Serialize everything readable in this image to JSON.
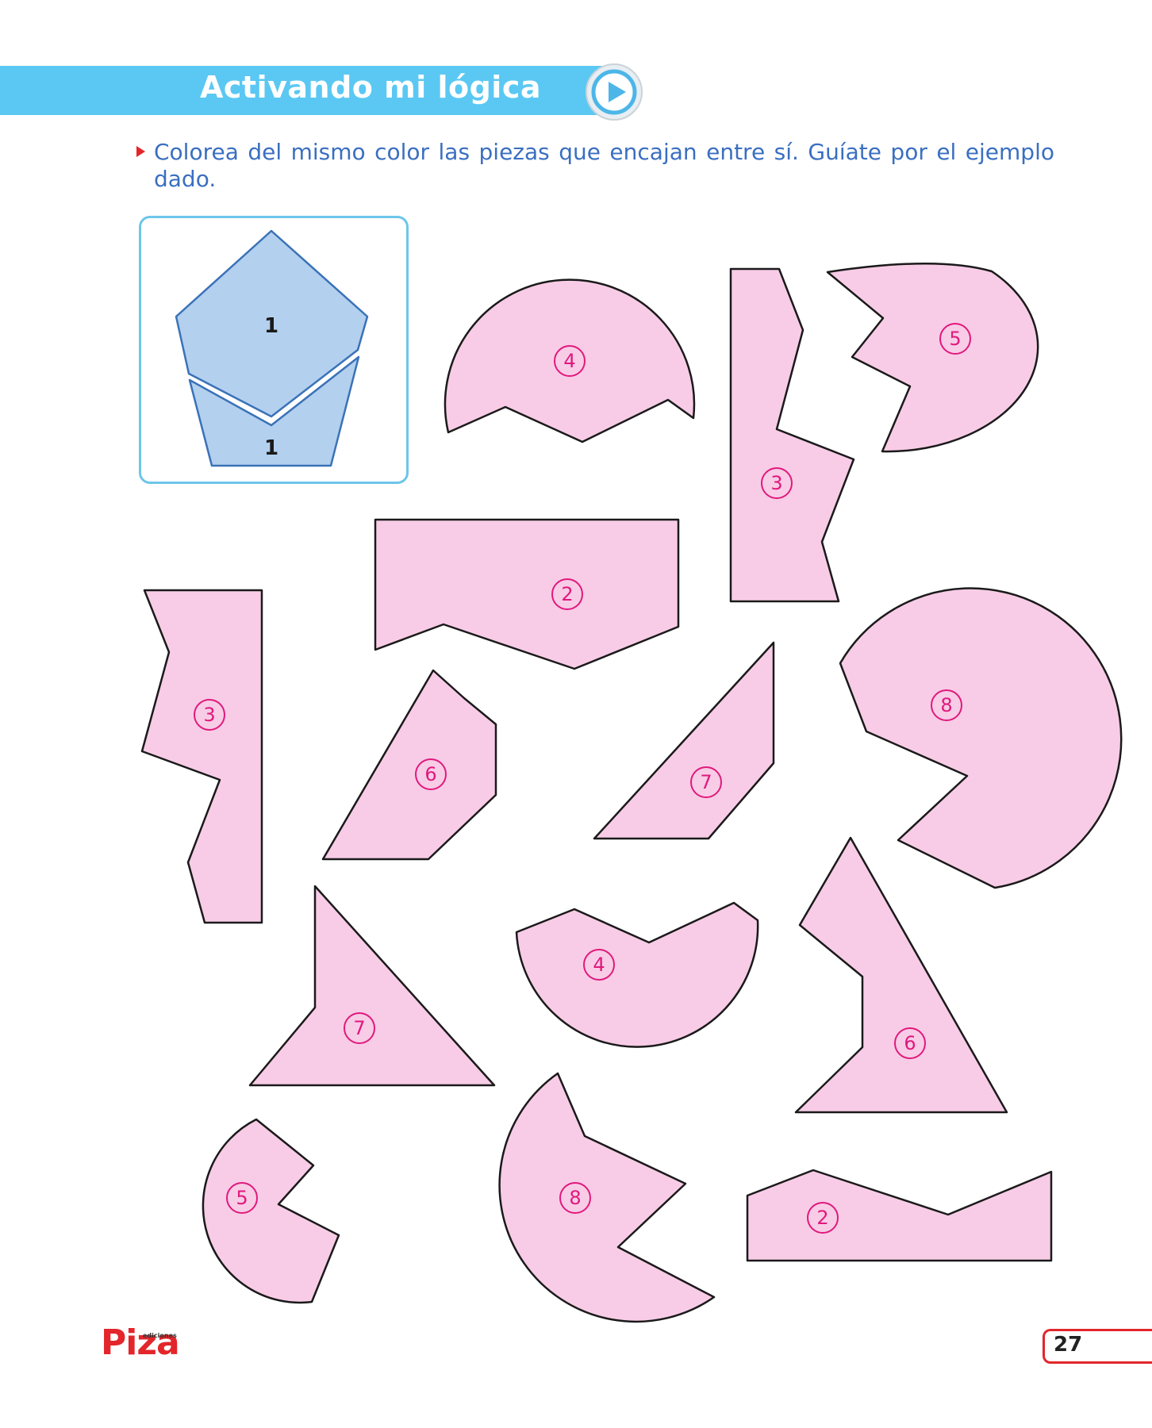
{
  "header": {
    "title": "Activando mi lógica",
    "banner_color": "#5bc8f3",
    "play_icon": "play-circle-icon"
  },
  "instruction": {
    "text": "Colorea del mismo color las piezas que encajan entre sí. Guíate por el ejemplo dado."
  },
  "example": {
    "top_label": "1",
    "bottom_label": "1",
    "fill": "#b3d0ee",
    "stroke": "#3a72b8"
  },
  "pieces": {
    "fill": "#f8cce6",
    "label_color": "#e0197d",
    "labels": [
      "4",
      "3",
      "5",
      "2",
      "3",
      "6",
      "7",
      "8",
      "4",
      "7",
      "6",
      "5",
      "8",
      "2"
    ]
  },
  "footer": {
    "logo_small": "ediciones",
    "logo_main": "Piza",
    "page_number": "27"
  }
}
